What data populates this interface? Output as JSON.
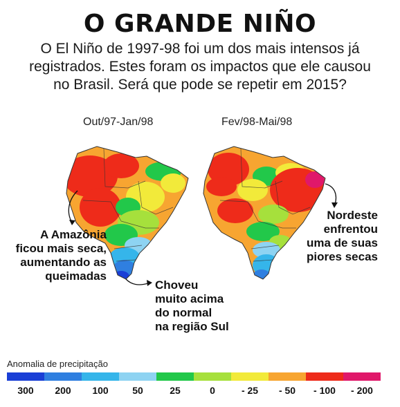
{
  "header": {
    "title": "O GRANDE NIÑO",
    "subtitle_lines": [
      "O El Niño de 1997-98 foi um dos mais intensos já",
      "registrados. Estes foram os impactos que ele causou",
      "no Brasil. Será que pode se repetir em 2015?"
    ]
  },
  "maps": [
    {
      "period": "Out/97-Jan/98"
    },
    {
      "period": "Fev/98-Mai/98"
    }
  ],
  "annotations": {
    "amazonia": [
      "A Amazônia",
      "ficou mais seca,",
      "aumentando as",
      "queimadas"
    ],
    "sul": [
      "Choveu",
      "muito acima",
      "do normal",
      "na região Sul"
    ],
    "nordeste": [
      "Nordeste",
      "enfrentou",
      "uma de suas",
      "piores secas"
    ]
  },
  "legend": {
    "title": "Anomalia de precipitação",
    "colors": [
      "#1a3fd6",
      "#2f7fe0",
      "#35b5ea",
      "#8ed3f2",
      "#22c84a",
      "#a6e03c",
      "#f2ea3a",
      "#f7a531",
      "#ee2b1a",
      "#e0186a"
    ],
    "ticks": [
      "300",
      "200",
      "100",
      "50",
      "25",
      "0",
      "- 25",
      "- 50",
      "- 100",
      "- 200"
    ]
  }
}
